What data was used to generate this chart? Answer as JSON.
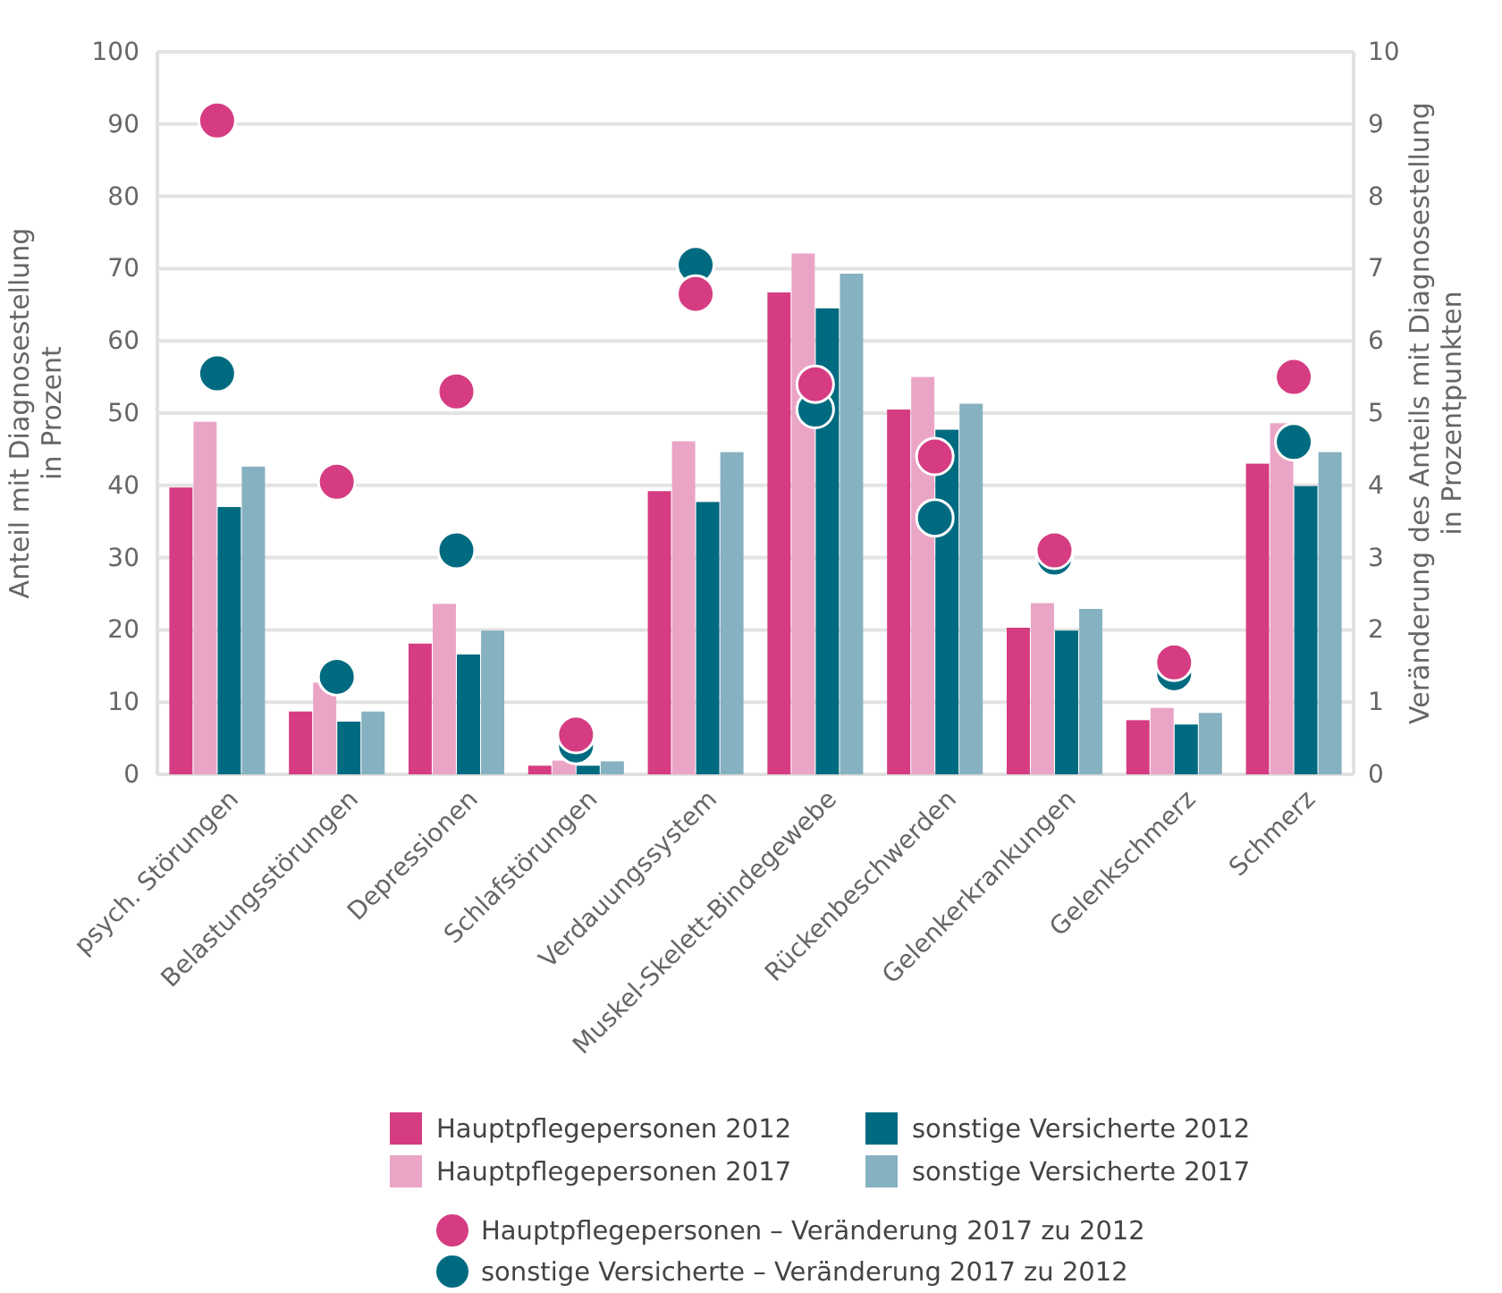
{
  "chart_data": {
    "type": "bar",
    "ylabel": "Anteil mit Diagnosestellung\nin Prozent",
    "y2label": "Veränderung des Anteils mit Diagnosestellung\nin Prozentpunkten",
    "categories": [
      "psych. Störungen",
      "Belastungsstörungen",
      "Depressionen",
      "Schlafstörungen",
      "Verdauungssystem",
      "Muskel-Skelett-Bindegewebe",
      "Rückenbeschwerden",
      "Gelenkerkrankungen",
      "Gelenkschmerz",
      "Schmerz"
    ],
    "series": [
      {
        "name": "Hauptpflegepersonen 2012",
        "color": "#d63c82",
        "values": [
          39.7,
          8.7,
          18.1,
          1.2,
          39.2,
          66.7,
          50.5,
          20.3,
          7.5,
          43.0
        ]
      },
      {
        "name": "Hauptpflegepersonen 2017",
        "color": "#eaa5c6",
        "values": [
          48.8,
          12.7,
          23.6,
          1.9,
          46.1,
          72.1,
          55.0,
          23.7,
          9.2,
          48.6
        ]
      },
      {
        "name": "sonstige Versicherte 2012",
        "color": "#006b80",
        "values": [
          37.0,
          7.3,
          16.6,
          1.2,
          37.7,
          64.5,
          47.7,
          19.9,
          6.9,
          39.9
        ]
      },
      {
        "name": "sonstige Versicherte 2017",
        "color": "#86b1c1",
        "values": [
          42.6,
          8.7,
          19.9,
          1.8,
          44.6,
          69.3,
          51.3,
          22.9,
          8.5,
          44.6
        ]
      },
      {
        "name": "Hauptpflegepersonen – Veränderung 2017 zu 2012",
        "type": "scatter",
        "axis": "y2",
        "color": "#d63c82",
        "values": [
          9.05,
          4.05,
          5.3,
          0.55,
          6.65,
          5.4,
          4.4,
          3.1,
          1.55,
          5.5
        ]
      },
      {
        "name": "sonstige Versicherte – Veränderung 2017 zu 2012",
        "type": "scatter",
        "axis": "y2",
        "color": "#006b80",
        "values": [
          5.55,
          1.35,
          3.1,
          0.4,
          7.05,
          5.05,
          3.55,
          3.0,
          1.4,
          4.6
        ]
      }
    ],
    "ylim": [
      0,
      100
    ],
    "yticks": [
      0,
      10,
      20,
      30,
      40,
      50,
      60,
      70,
      80,
      90,
      100
    ],
    "y2lim": [
      0,
      10
    ],
    "y2ticks": [
      0,
      1,
      2,
      3,
      4,
      5,
      6,
      7,
      8,
      9,
      10
    ],
    "grid": "y",
    "legend": "bottom",
    "marker": "circle"
  }
}
